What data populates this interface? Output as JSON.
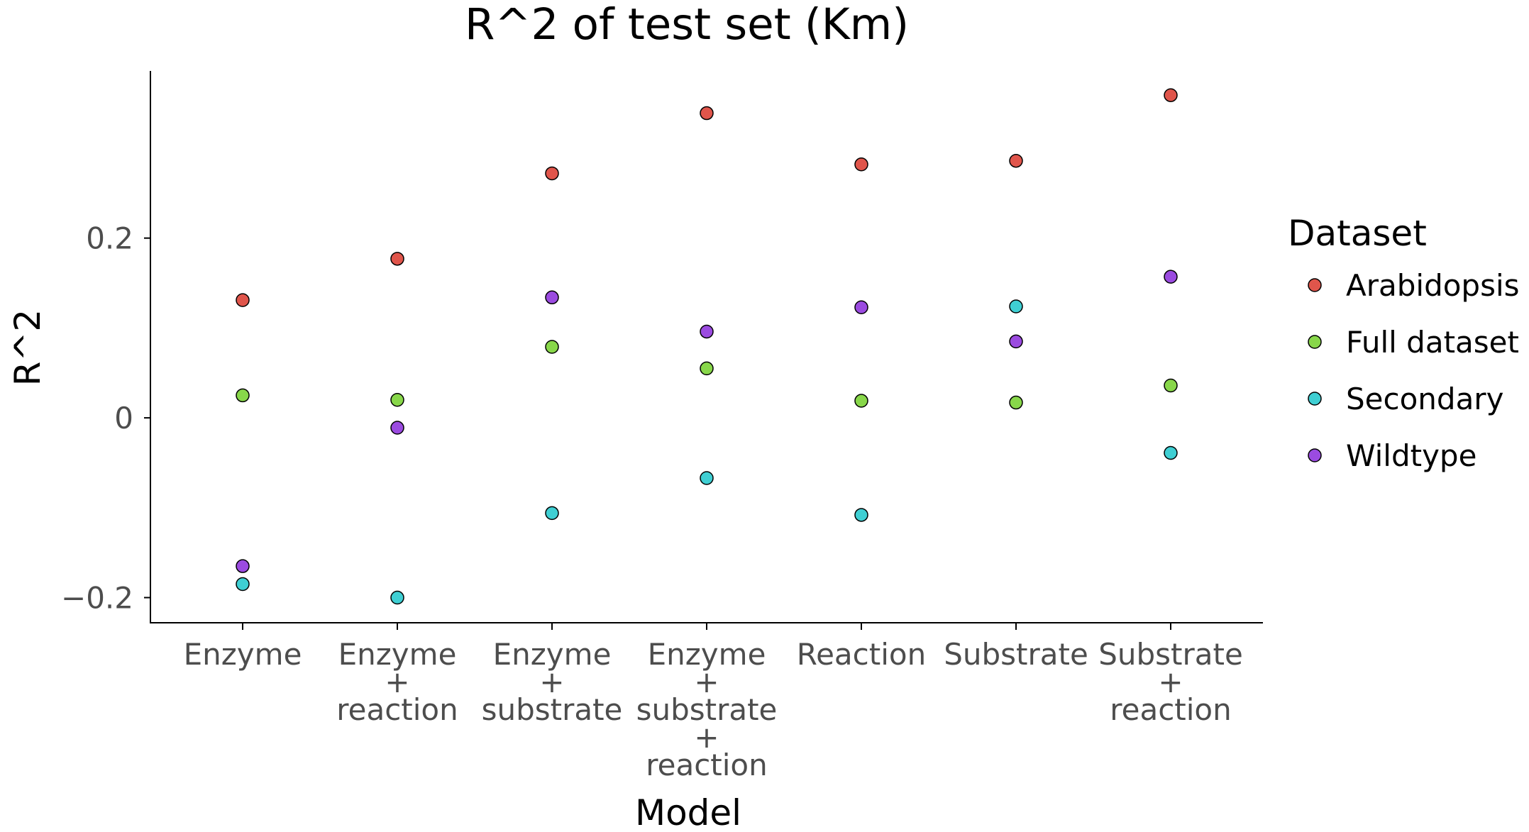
{
  "chart_data": {
    "type": "scatter",
    "title": "R^2 of test set (Km)",
    "xlabel": "Model",
    "ylabel": "R^2",
    "categories": [
      [
        "Enzyme"
      ],
      [
        "Enzyme",
        "+",
        "reaction"
      ],
      [
        "Enzyme",
        "+",
        "substrate"
      ],
      [
        "Enzyme",
        "+",
        "substrate",
        "+",
        "reaction"
      ],
      [
        "Reaction"
      ],
      [
        "Substrate"
      ],
      [
        "Substrate",
        "+",
        "reaction"
      ]
    ],
    "yticks": [
      {
        "value": -0.2,
        "label": "−0.2"
      },
      {
        "value": 0,
        "label": "0"
      },
      {
        "value": 0.2,
        "label": "0.2"
      }
    ],
    "ylim": [
      -0.228,
      0.386
    ],
    "grid": false,
    "legend": {
      "title": "Dataset",
      "position": "right"
    },
    "series": [
      {
        "name": "Arabidopsis",
        "color": "#E0554B",
        "values": [
          0.131,
          0.177,
          0.272,
          0.339,
          0.282,
          0.286,
          0.359
        ]
      },
      {
        "name": "Full dataset",
        "color": "#88D74A",
        "values": [
          0.025,
          0.02,
          0.079,
          0.055,
          0.019,
          0.017,
          0.036
        ]
      },
      {
        "name": "Secondary",
        "color": "#3FCFD3",
        "values": [
          -0.185,
          -0.2,
          -0.106,
          -0.067,
          -0.108,
          0.124,
          -0.039
        ]
      },
      {
        "name": "Wildtype",
        "color": "#9B4BE0",
        "values": [
          -0.165,
          -0.011,
          0.134,
          0.096,
          0.123,
          0.085,
          0.157
        ]
      }
    ]
  }
}
